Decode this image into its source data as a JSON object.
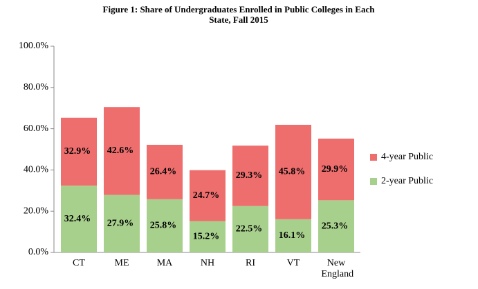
{
  "chart_data": {
    "type": "stacked_bar",
    "title": "Figure 1: Share of Undergraduates Enrolled in Public Colleges in Each State, Fall 2015",
    "categories": [
      "CT",
      "ME",
      "MA",
      "NH",
      "RI",
      "VT",
      "New England"
    ],
    "series": [
      {
        "name": "2-year Public",
        "color": "#a8d08d",
        "values": [
          32.4,
          27.9,
          25.8,
          15.2,
          22.5,
          16.1,
          25.3
        ],
        "value_labels": [
          "32.4%",
          "27.9%",
          "25.8%",
          "15.2%",
          "22.5%",
          "16.1%",
          "25.3%"
        ]
      },
      {
        "name": "4-year Public",
        "color": "#ee6e6e",
        "values": [
          32.9,
          42.6,
          26.4,
          24.7,
          29.3,
          45.8,
          29.9
        ],
        "value_labels": [
          "32.9%",
          "42.6%",
          "26.4%",
          "24.7%",
          "29.3%",
          "45.8%",
          "29.9%"
        ]
      }
    ],
    "ylim": [
      0,
      100
    ],
    "yticks": [
      {
        "value": 0,
        "label": "0.0%"
      },
      {
        "value": 20,
        "label": "20.0%"
      },
      {
        "value": 40,
        "label": "40.0%"
      },
      {
        "value": 60,
        "label": "60.0%"
      },
      {
        "value": 80,
        "label": "80.0%"
      },
      {
        "value": 100,
        "label": "100.0%"
      }
    ],
    "legend": "right"
  }
}
